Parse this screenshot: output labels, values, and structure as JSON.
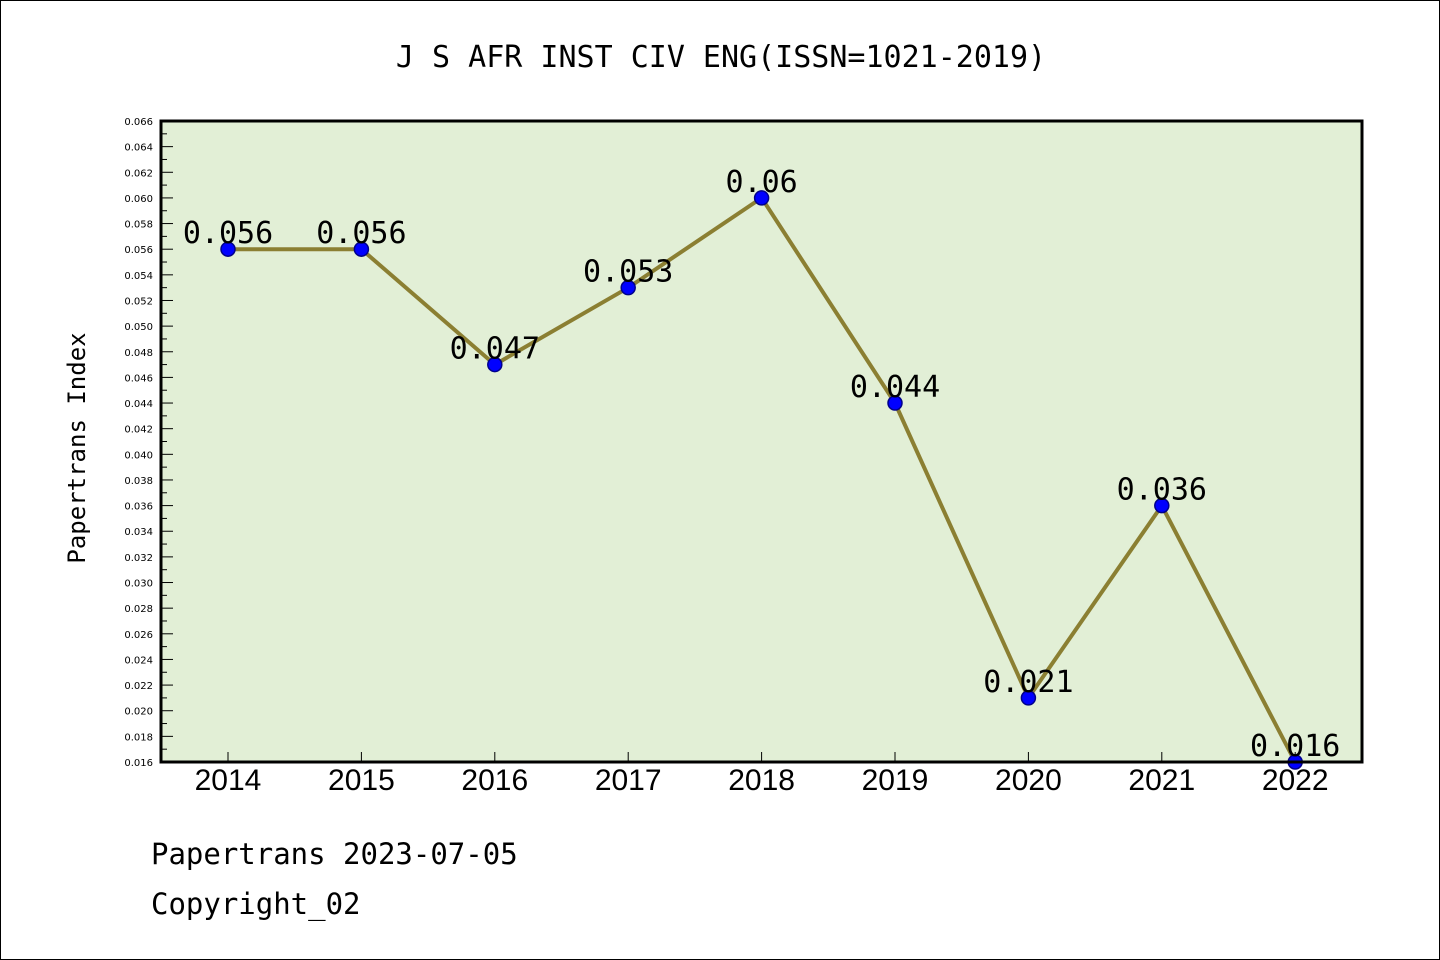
{
  "chart_data": {
    "type": "line",
    "title": "J S AFR INST CIV ENG(ISSN=1021-2019)",
    "xlabel": "",
    "ylabel": "Papertrans Index",
    "categories": [
      "2014",
      "2015",
      "2016",
      "2017",
      "2018",
      "2019",
      "2020",
      "2021",
      "2022"
    ],
    "series": [
      {
        "values": [
          0.056,
          0.056,
          0.047,
          0.053,
          0.06,
          0.044,
          0.021,
          0.036,
          0.016
        ],
        "data_labels": [
          "0.056",
          "0.056",
          "0.047",
          "0.053",
          "0.06",
          "0.044",
          "0.021",
          "0.036",
          "0.016"
        ]
      }
    ],
    "ylim": [
      0.016,
      0.066
    ],
    "y_ticks": [
      "0.016",
      "0.018",
      "0.020",
      "0.022",
      "0.024",
      "0.026",
      "0.028",
      "0.030",
      "0.032",
      "0.034",
      "0.036",
      "0.038",
      "0.040",
      "0.042",
      "0.044",
      "0.046",
      "0.048",
      "0.050",
      "0.052",
      "0.054",
      "0.056",
      "0.058",
      "0.060",
      "0.062",
      "0.064",
      "0.066"
    ],
    "grid": false,
    "legend": "none",
    "colors": {
      "plot_background": "#e2efd6",
      "line": "#8b7f32",
      "marker": "#0000ff",
      "marker_edge": "#00008b"
    }
  },
  "footer": {
    "date_text": "Papertrans 2023-07-05",
    "copyright_text": "Copyright_02"
  }
}
